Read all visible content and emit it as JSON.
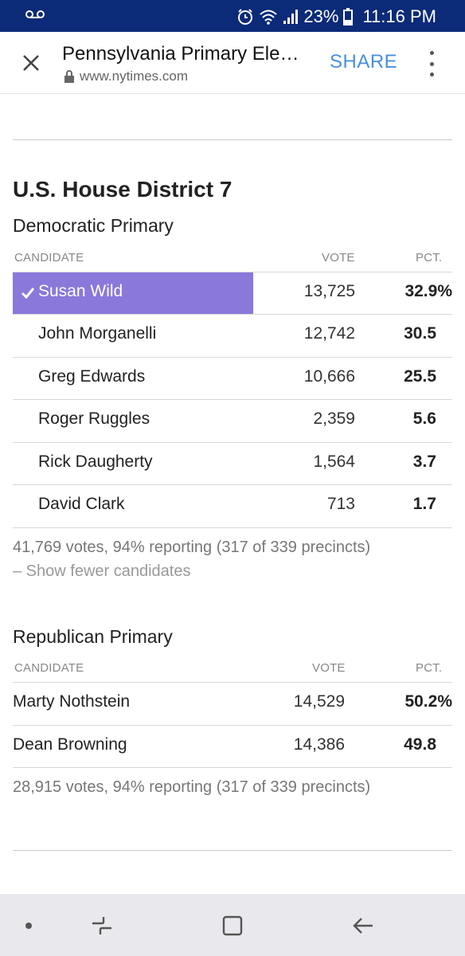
{
  "status": {
    "battery_pct": "23%",
    "time": "11:16 PM",
    "icons": [
      "voicemail-icon",
      "alarm-icon",
      "wifi-icon",
      "signal-icon",
      "battery-icon"
    ]
  },
  "toolbar": {
    "title": "Pennsylvania Primary Ele…",
    "url": "www.nytimes.com",
    "share_label": "SHARE"
  },
  "race": {
    "title": "U.S. House District 7",
    "columns": {
      "candidate": "CANDIDATE",
      "vote": "VOTE",
      "pct": "PCT."
    },
    "democratic": {
      "title": "Democratic Primary",
      "candidates": [
        {
          "name": "Susan Wild",
          "votes": "13,725",
          "pct": "32.9%",
          "winner": true
        },
        {
          "name": "John Morganelli",
          "votes": "12,742",
          "pct": "30.5"
        },
        {
          "name": "Greg Edwards",
          "votes": "10,666",
          "pct": "25.5"
        },
        {
          "name": "Roger Ruggles",
          "votes": "2,359",
          "pct": "5.6"
        },
        {
          "name": "Rick Daugherty",
          "votes": "1,564",
          "pct": "3.7"
        },
        {
          "name": "David Clark",
          "votes": "713",
          "pct": "1.7"
        }
      ],
      "summary": "41,769 votes, 94% reporting (317 of 339 precincts)",
      "toggle_label": "– Show fewer candidates"
    },
    "republican": {
      "title": "Republican Primary",
      "candidates": [
        {
          "name": "Marty Nothstein",
          "votes": "14,529",
          "pct": "50.2%"
        },
        {
          "name": "Dean Browning",
          "votes": "14,386",
          "pct": "49.8"
        }
      ],
      "summary": "28,915 votes, 94% reporting (317 of 339 precincts)"
    }
  },
  "colors": {
    "status_bar": "#0b2a78",
    "winner_highlight": "#8a78db",
    "share_blue": "#4a8fe2"
  }
}
